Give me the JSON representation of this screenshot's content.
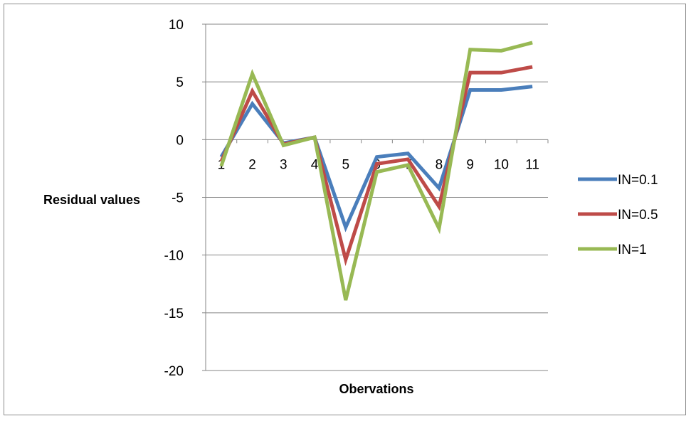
{
  "chart_data": {
    "type": "line",
    "title": "",
    "xlabel": "Obervations",
    "ylabel": "Residual values",
    "categories": [
      "1",
      "2",
      "3",
      "4",
      "5",
      "6",
      "7",
      "8",
      "9",
      "10",
      "11"
    ],
    "ylim": [
      -20,
      10
    ],
    "yticks": [
      10,
      5,
      0,
      -5,
      -10,
      -15,
      -20
    ],
    "ytick_labels": [
      "10",
      "5",
      "0",
      "-5",
      "-10",
      "-15",
      "-20"
    ],
    "grid": "horizontal major gridlines",
    "legend_position": "right",
    "series": [
      {
        "name": "IN=0.1",
        "color": "#4a7ebb",
        "values": [
          -1.5,
          3.1,
          -0.3,
          0.2,
          -7.6,
          -1.5,
          -1.2,
          -4.2,
          4.3,
          4.3,
          4.6
        ]
      },
      {
        "name": "IN=0.5",
        "color": "#be4b48",
        "values": [
          -1.9,
          4.2,
          -0.4,
          0.2,
          -10.4,
          -2.1,
          -1.7,
          -5.8,
          5.8,
          5.8,
          6.3
        ]
      },
      {
        "name": "IN=1",
        "color": "#98b954",
        "values": [
          -2.3,
          5.7,
          -0.5,
          0.2,
          -13.9,
          -2.8,
          -2.2,
          -7.7,
          7.8,
          7.7,
          8.4
        ]
      }
    ]
  }
}
